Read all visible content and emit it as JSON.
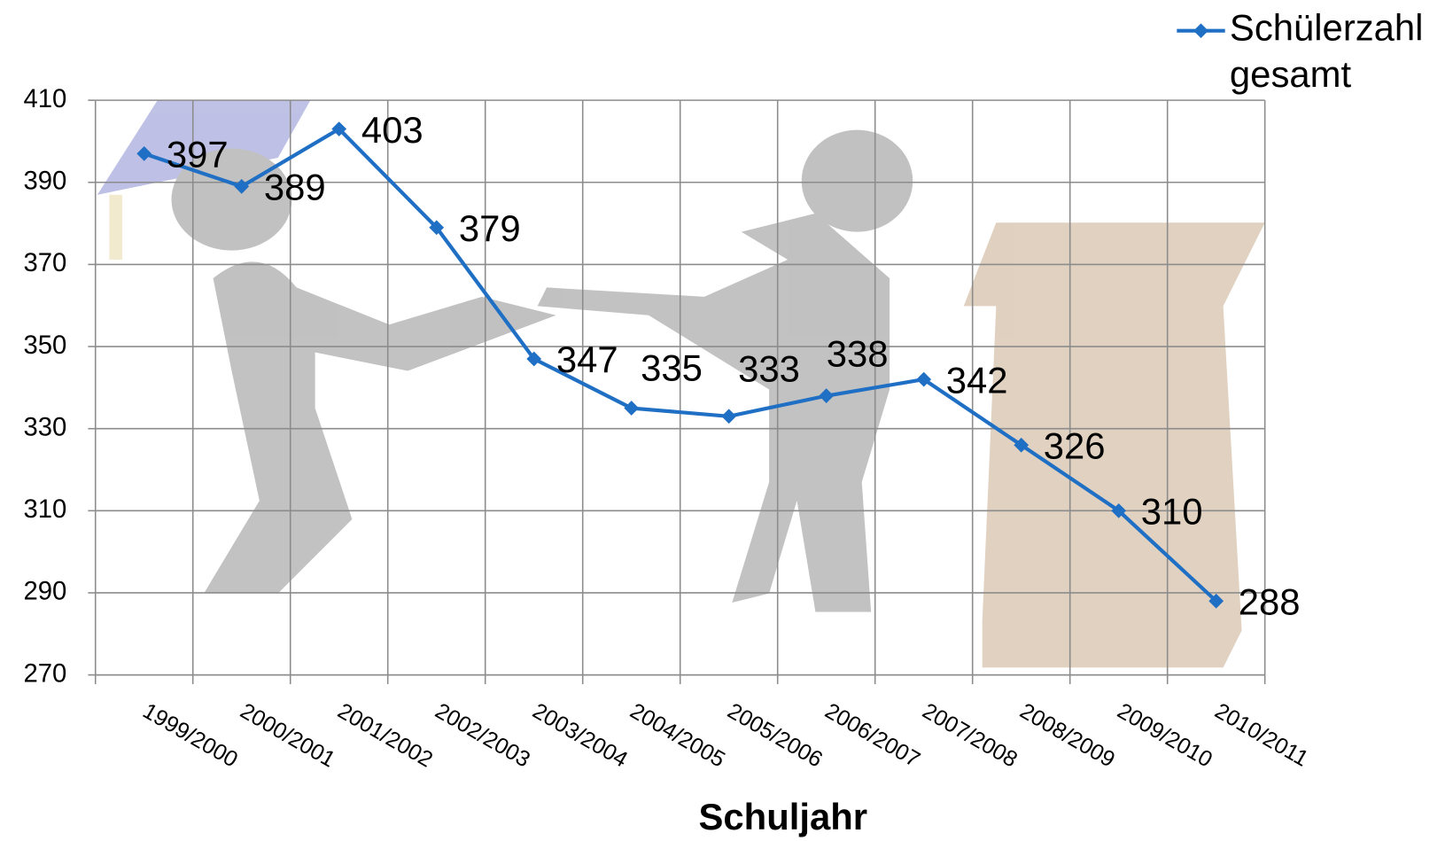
{
  "chart_data": {
    "type": "line",
    "x_label": "Schuljahr",
    "categories": [
      "1999/2000",
      "2000/2001",
      "2001/2002",
      "2002/2003",
      "2003/2004",
      "2004/2005",
      "2005/2006",
      "2006/2007",
      "2007/2008",
      "2008/2009",
      "2009/2010",
      "2010/2011"
    ],
    "series": [
      {
        "name": "Schülerzahl gesamt",
        "color": "#1f6fc5",
        "values": [
          397,
          389,
          403,
          379,
          347,
          335,
          333,
          338,
          342,
          326,
          310,
          288
        ]
      }
    ],
    "ylim": [
      270,
      410
    ],
    "yticks": [
      270,
      290,
      310,
      330,
      350,
      370,
      390,
      410
    ],
    "grid": true,
    "legend": "top-right"
  }
}
